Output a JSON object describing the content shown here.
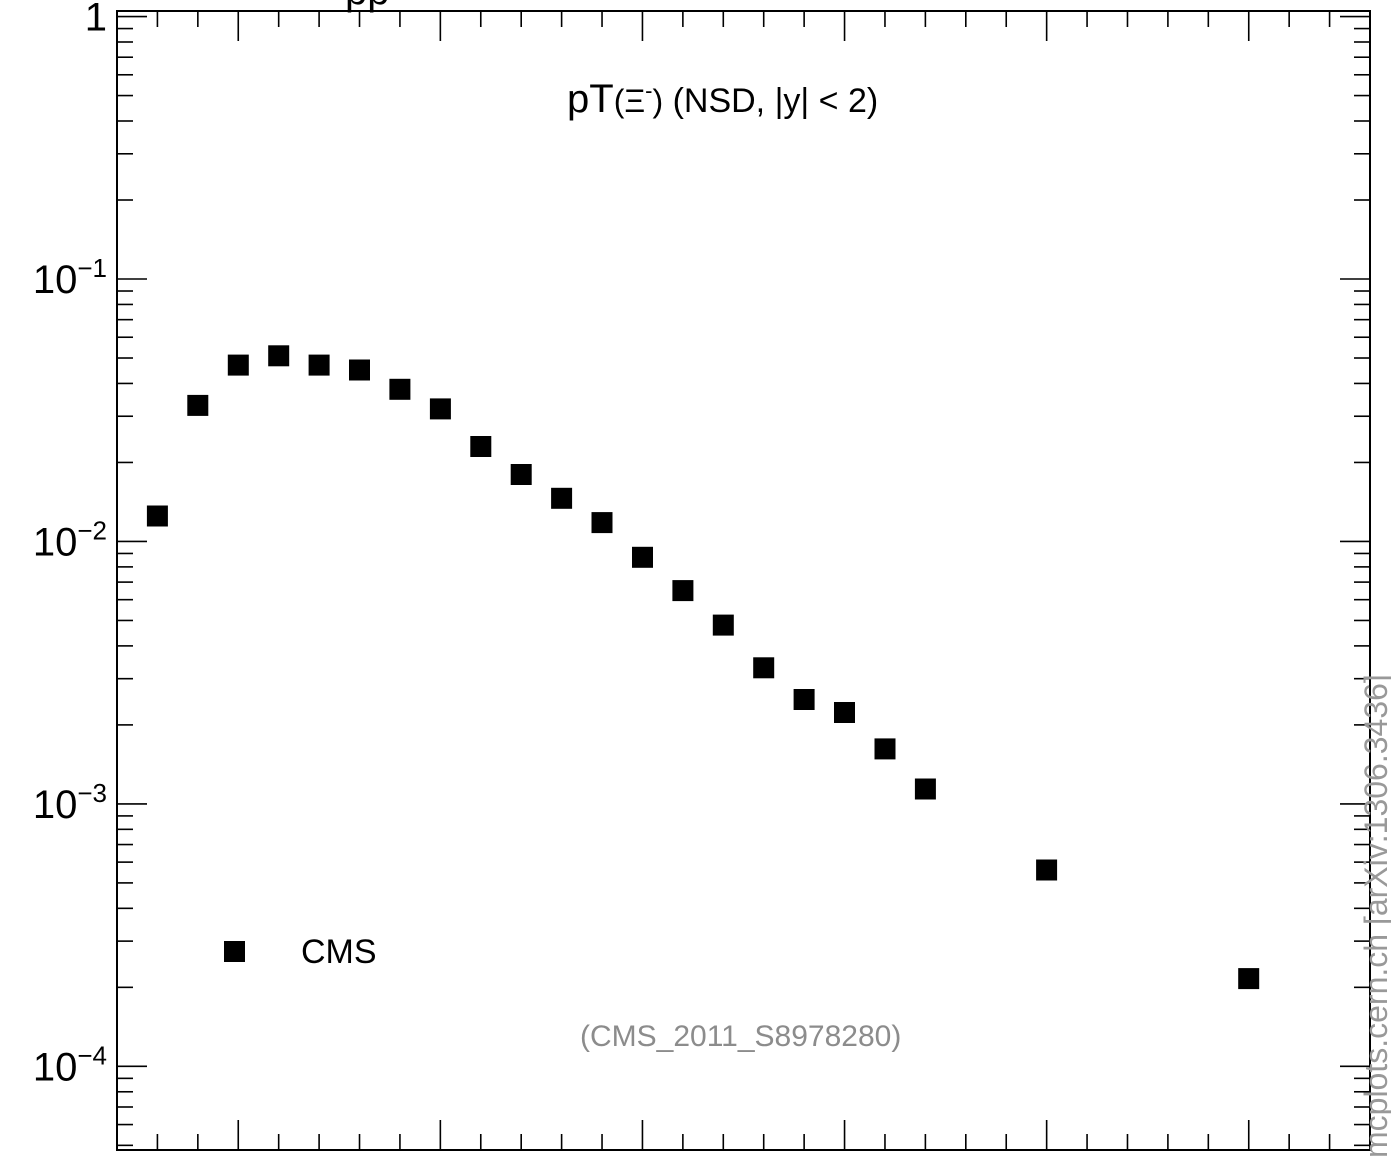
{
  "chart_data": {
    "type": "scatter",
    "title": "pT(Ξ-) (NSD, |y| < 2)",
    "title_parts": {
      "main": "pT",
      "particle_open": "(Ξ",
      "particle_sup": "-",
      "particle_close": ")",
      "rest": " (NSD, |y| < 2)"
    },
    "header_fragment": "pp",
    "xlabel": "",
    "ylabel": "",
    "yscale": "log",
    "xlim": [
      0.0,
      6.2
    ],
    "ylim": [
      4.8e-05,
      1.05
    ],
    "y_tick_labels": [
      {
        "value": 1,
        "label": "1"
      },
      {
        "value": 0.1,
        "label": "10",
        "exponent": "−1"
      },
      {
        "value": 0.01,
        "label": "10",
        "exponent": "−2"
      },
      {
        "value": 0.001,
        "label": "10",
        "exponent": "−3"
      },
      {
        "value": 0.0001,
        "label": "10",
        "exponent": "−4"
      }
    ],
    "x_major_ticks": [
      0.6,
      1.6,
      2.6,
      3.6,
      4.6,
      5.6
    ],
    "x_tick_step": 0.2,
    "grid": false,
    "legend_position": "bottom-left",
    "annotation": "(CMS_2011_S8978280)",
    "watermark": "mcplots.cern.ch [arXiv:1306.3436]",
    "series": [
      {
        "name": "CMS",
        "marker": "square",
        "color": "#000000",
        "points": [
          {
            "x": 0.2,
            "y": 0.0125
          },
          {
            "x": 0.4,
            "y": 0.033
          },
          {
            "x": 0.6,
            "y": 0.047
          },
          {
            "x": 0.8,
            "y": 0.051
          },
          {
            "x": 1.0,
            "y": 0.047
          },
          {
            "x": 1.2,
            "y": 0.045
          },
          {
            "x": 1.4,
            "y": 0.038
          },
          {
            "x": 1.6,
            "y": 0.032
          },
          {
            "x": 1.8,
            "y": 0.023
          },
          {
            "x": 2.0,
            "y": 0.018
          },
          {
            "x": 2.2,
            "y": 0.0146
          },
          {
            "x": 2.4,
            "y": 0.0118
          },
          {
            "x": 2.6,
            "y": 0.0087
          },
          {
            "x": 2.8,
            "y": 0.0065
          },
          {
            "x": 3.0,
            "y": 0.0048
          },
          {
            "x": 3.2,
            "y": 0.0033
          },
          {
            "x": 3.4,
            "y": 0.0025
          },
          {
            "x": 3.6,
            "y": 0.00223
          },
          {
            "x": 3.8,
            "y": 0.00162
          },
          {
            "x": 4.0,
            "y": 0.00114
          },
          {
            "x": 4.6,
            "y": 0.00056
          },
          {
            "x": 5.6,
            "y": 0.000216
          }
        ]
      }
    ]
  }
}
